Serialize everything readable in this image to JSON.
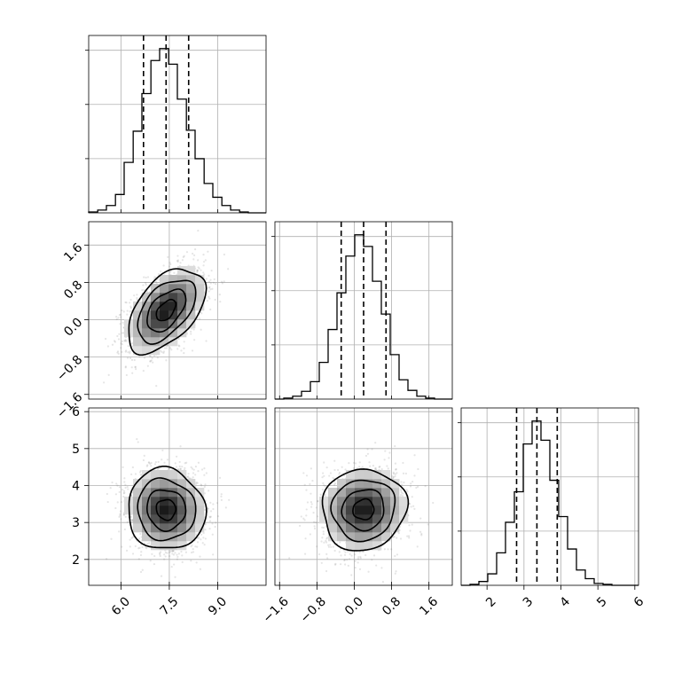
{
  "chart_data": {
    "type": "corner",
    "parameters": [
      {
        "key": "p0",
        "range": [
          5.0,
          10.5
        ],
        "ticks": [
          "6.0",
          "7.5",
          "9.0"
        ],
        "tick_values": [
          6.0,
          7.5,
          9.0
        ],
        "mean": 7.4,
        "sd": 0.6,
        "quantiles": [
          6.7,
          7.4,
          8.1
        ]
      },
      {
        "key": "p1",
        "range": [
          -1.7,
          2.1
        ],
        "ticks": [
          "-1.6",
          "-0.8",
          "0.0",
          "0.8",
          "1.6"
        ],
        "tick_values": [
          -1.6,
          -0.8,
          0.0,
          0.8,
          1.6
        ],
        "mean": 0.2,
        "sd": 0.45,
        "quantiles": [
          -0.28,
          0.2,
          0.68
        ]
      },
      {
        "key": "p2",
        "range": [
          1.3,
          6.1
        ],
        "ticks": [
          "2",
          "3",
          "4",
          "5",
          "6"
        ],
        "tick_values": [
          2,
          3,
          4,
          5,
          6
        ],
        "mean": 3.35,
        "sd": 0.55,
        "quantiles": [
          2.8,
          3.35,
          3.9
        ]
      }
    ],
    "histograms": [
      {
        "param": 0,
        "bin_edges": [
          5.0,
          5.28,
          5.55,
          5.83,
          6.1,
          6.38,
          6.65,
          6.93,
          7.2,
          7.48,
          7.75,
          8.03,
          8.3,
          8.58,
          8.85,
          9.13,
          9.4,
          9.68,
          9.95,
          10.23,
          10.5
        ],
        "counts": [
          1,
          3,
          8,
          20,
          55,
          89,
          130,
          166,
          179,
          162,
          124,
          90,
          59,
          32,
          17,
          8,
          3,
          1,
          0,
          0
        ]
      },
      {
        "param": 1,
        "bin_edges": [
          -1.7,
          -1.51,
          -1.32,
          -1.13,
          -0.94,
          -0.75,
          -0.56,
          -0.37,
          -0.18,
          0.01,
          0.2,
          0.39,
          0.58,
          0.77,
          0.96,
          1.15,
          1.34,
          1.53,
          1.72,
          1.91,
          2.1
        ],
        "counts": [
          0,
          1,
          3,
          8,
          18,
          38,
          72,
          110,
          148,
          170,
          158,
          122,
          88,
          46,
          20,
          9,
          3,
          1,
          0,
          0
        ]
      },
      {
        "param": 2,
        "bin_edges": [
          1.3,
          1.54,
          1.78,
          2.02,
          2.26,
          2.5,
          2.74,
          2.98,
          3.22,
          3.46,
          3.7,
          3.94,
          4.18,
          4.42,
          4.66,
          4.9,
          5.14,
          5.38,
          5.62,
          5.86,
          6.1
        ],
        "counts": [
          0,
          1,
          4,
          12,
          34,
          66,
          98,
          148,
          172,
          152,
          110,
          72,
          38,
          16,
          7,
          2,
          1,
          0,
          0,
          0
        ]
      }
    ],
    "pairs": [
      {
        "x": 0,
        "y": 1,
        "rho": 0.5
      },
      {
        "x": 0,
        "y": 2,
        "rho": -0.05
      },
      {
        "x": 1,
        "y": 2,
        "rho": 0.05
      }
    ],
    "contour_levels_sigma": [
      0.5,
      1.0,
      1.5,
      2.0
    ],
    "grid": true
  }
}
